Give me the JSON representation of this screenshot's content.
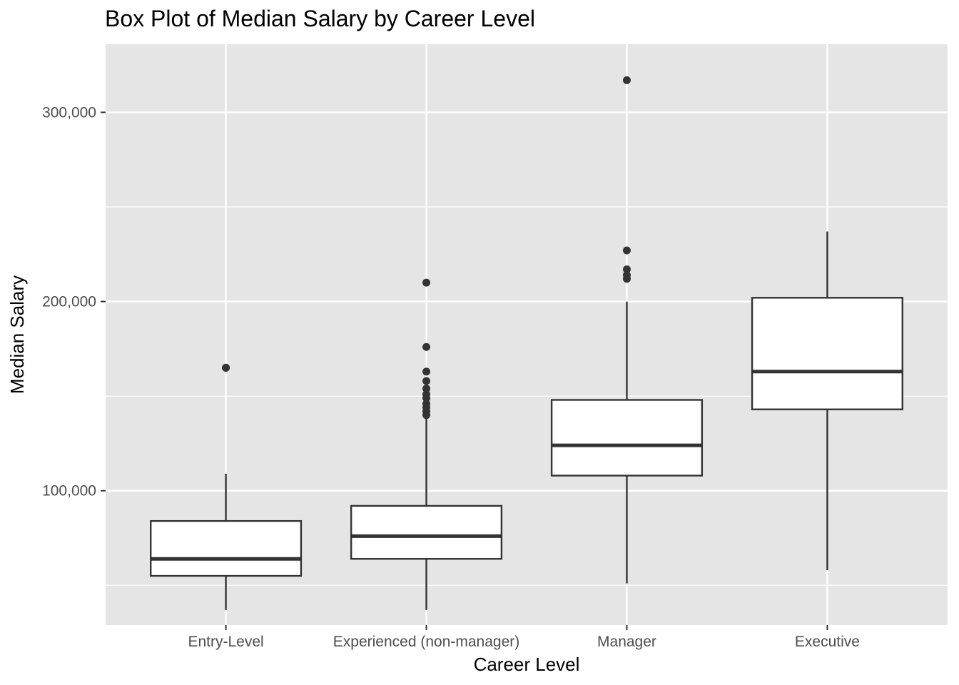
{
  "chart_data": {
    "type": "box",
    "title": "Box Plot of Median Salary by Career Level",
    "xlabel": "Career Level",
    "ylabel": "Median Salary",
    "ylim": [
      29000,
      336000
    ],
    "y_ticks": [
      100000,
      200000,
      300000
    ],
    "y_tick_labels": [
      "100,000",
      "200,000",
      "300,000"
    ],
    "y_minor_ticks": [
      50000,
      150000,
      250000
    ],
    "grid": true,
    "legend": "none",
    "categories": [
      "Entry-Level",
      "Experienced (non-manager)",
      "Manager",
      "Executive"
    ],
    "boxes": [
      {
        "category": "Entry-Level",
        "whisker_low": 37000,
        "q1": 55000,
        "median": 64000,
        "q3": 84000,
        "whisker_high": 109000,
        "outliers": [
          165000,
          165000
        ]
      },
      {
        "category": "Experienced (non-manager)",
        "whisker_low": 37000,
        "q1": 64000,
        "median": 76000,
        "q3": 92000,
        "whisker_high": 140000,
        "outliers": [
          140000,
          142000,
          144000,
          146000,
          149000,
          151000,
          154000,
          158000,
          163000,
          176000,
          210000
        ]
      },
      {
        "category": "Manager",
        "whisker_low": 51000,
        "q1": 108000,
        "median": 124000,
        "q3": 148000,
        "whisker_high": 200000,
        "outliers": [
          212000,
          214000,
          217000,
          227000,
          317000
        ]
      },
      {
        "category": "Executive",
        "whisker_low": 58000,
        "q1": 143000,
        "median": 163000,
        "q3": 202000,
        "whisker_high": 237000,
        "outliers": []
      }
    ],
    "colors": {
      "panel": "#e5e5e5",
      "grid": "#ffffff",
      "box_fill": "#ffffff",
      "box_stroke": "#333333",
      "outlier": "#333333"
    }
  }
}
